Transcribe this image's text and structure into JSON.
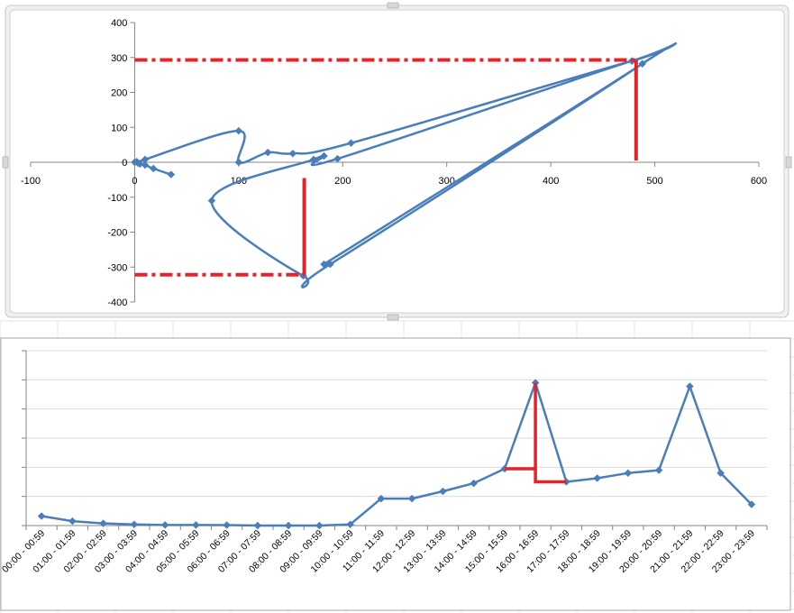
{
  "colors": {
    "series": "#4a7ebb",
    "annotation": "#e3242b",
    "axis": "#868686",
    "gridline": "#dadcdd",
    "frame_border": "#bfbfbf"
  },
  "chart_data": [
    {
      "type": "scatter",
      "smooth_lines": true,
      "marker": "diamond",
      "xlim": [
        -100,
        600
      ],
      "ylim": [
        -400,
        400
      ],
      "x_ticks": [
        -100,
        0,
        100,
        200,
        300,
        400,
        500,
        600
      ],
      "y_ticks": [
        400,
        300,
        200,
        100,
        0,
        -100,
        -200,
        -300,
        -400
      ],
      "x_tick_labels": [
        "-100",
        "0",
        "100",
        "200",
        "300",
        "400",
        "500",
        "600"
      ],
      "y_tick_labels": [
        "400",
        "300",
        "200",
        "100",
        "0",
        "-100",
        "-200",
        "-300",
        "-400"
      ],
      "grid": false,
      "legend": "none",
      "points": [
        {
          "x": 35,
          "y": -35
        },
        {
          "x": 18,
          "y": -18
        },
        {
          "x": 10,
          "y": -8
        },
        {
          "x": 5,
          "y": -5
        },
        {
          "x": 2,
          "y": 2
        },
        {
          "x": 0,
          "y": 0
        },
        {
          "x": 3,
          "y": -2
        },
        {
          "x": 10,
          "y": 8
        },
        {
          "x": 100,
          "y": 90
        },
        {
          "x": 100,
          "y": 0
        },
        {
          "x": 128,
          "y": 28
        },
        {
          "x": 152,
          "y": 25
        },
        {
          "x": 208,
          "y": 55
        },
        {
          "x": 478,
          "y": 290
        },
        {
          "x": 488,
          "y": 282
        },
        {
          "x": 188,
          "y": -292
        },
        {
          "x": 162,
          "y": -325
        },
        {
          "x": 74,
          "y": -110
        },
        {
          "x": 172,
          "y": 8
        },
        {
          "x": 182,
          "y": 18
        },
        {
          "x": 195,
          "y": 10
        },
        {
          "x": 478,
          "y": 290
        },
        {
          "x": 488,
          "y": 282
        },
        {
          "x": 182,
          "y": -292
        }
      ],
      "annotations": [
        {
          "style": "dash-dot",
          "from": {
            "x": 0,
            "y": 293
          },
          "to": {
            "x": 482,
            "y": 293
          }
        },
        {
          "style": "solid",
          "from": {
            "x": 482,
            "y": 293
          },
          "to": {
            "x": 482,
            "y": 5
          }
        },
        {
          "style": "dash-dot",
          "from": {
            "x": 0,
            "y": -322
          },
          "to": {
            "x": 163,
            "y": -322
          }
        },
        {
          "style": "solid",
          "from": {
            "x": 163,
            "y": -322
          },
          "to": {
            "x": 163,
            "y": -45
          }
        }
      ]
    },
    {
      "type": "line",
      "marker": "diamond",
      "categories": [
        "00:00 - 00:59",
        "01:00 - 01:59",
        "02:00 - 02:59",
        "03:00 - 03:59",
        "04:00 - 04:59",
        "05:00 - 05:59",
        "06:00 - 06:59",
        "07:00 - 07:59",
        "08:00 - 08:59",
        "09:00 - 09:59",
        "10:00 - 10:59",
        "11:00 - 11:59",
        "12:00 - 12:59",
        "13:00 - 13:59",
        "14:00 - 14:59",
        "15:00 - 15:59",
        "16:00 - 16:59",
        "17:00 - 17:59",
        "18:00 - 18:59",
        "19:00 - 19:59",
        "20:00 - 20:59",
        "21:00 - 21:59",
        "22:00 - 22:59",
        "23:00 - 23:59"
      ],
      "values": [
        0.65,
        0.3,
        0.15,
        0.08,
        0.04,
        0.04,
        0.03,
        0.0,
        0.0,
        0.0,
        0.08,
        1.85,
        1.85,
        2.35,
        2.9,
        3.9,
        9.8,
        3.0,
        3.25,
        3.6,
        3.8,
        9.55,
        3.6,
        1.45
      ],
      "ylim": [
        0,
        12
      ],
      "y_gridlines": [
        0,
        2,
        4,
        6,
        8,
        10,
        12
      ],
      "y_tick_labels": [],
      "grid": true,
      "legend": "none",
      "annotations": [
        {
          "style": "solid",
          "points": [
            {
              "cat": 15,
              "v": 3.9
            },
            {
              "cat": 16,
              "v": 3.9
            },
            {
              "cat": 16,
              "v": 9.8
            }
          ]
        },
        {
          "style": "solid",
          "points": [
            {
              "cat": 16,
              "v": 3.9
            },
            {
              "cat": 16,
              "v": 3.0
            },
            {
              "cat": 17,
              "v": 3.0
            }
          ]
        }
      ]
    }
  ]
}
